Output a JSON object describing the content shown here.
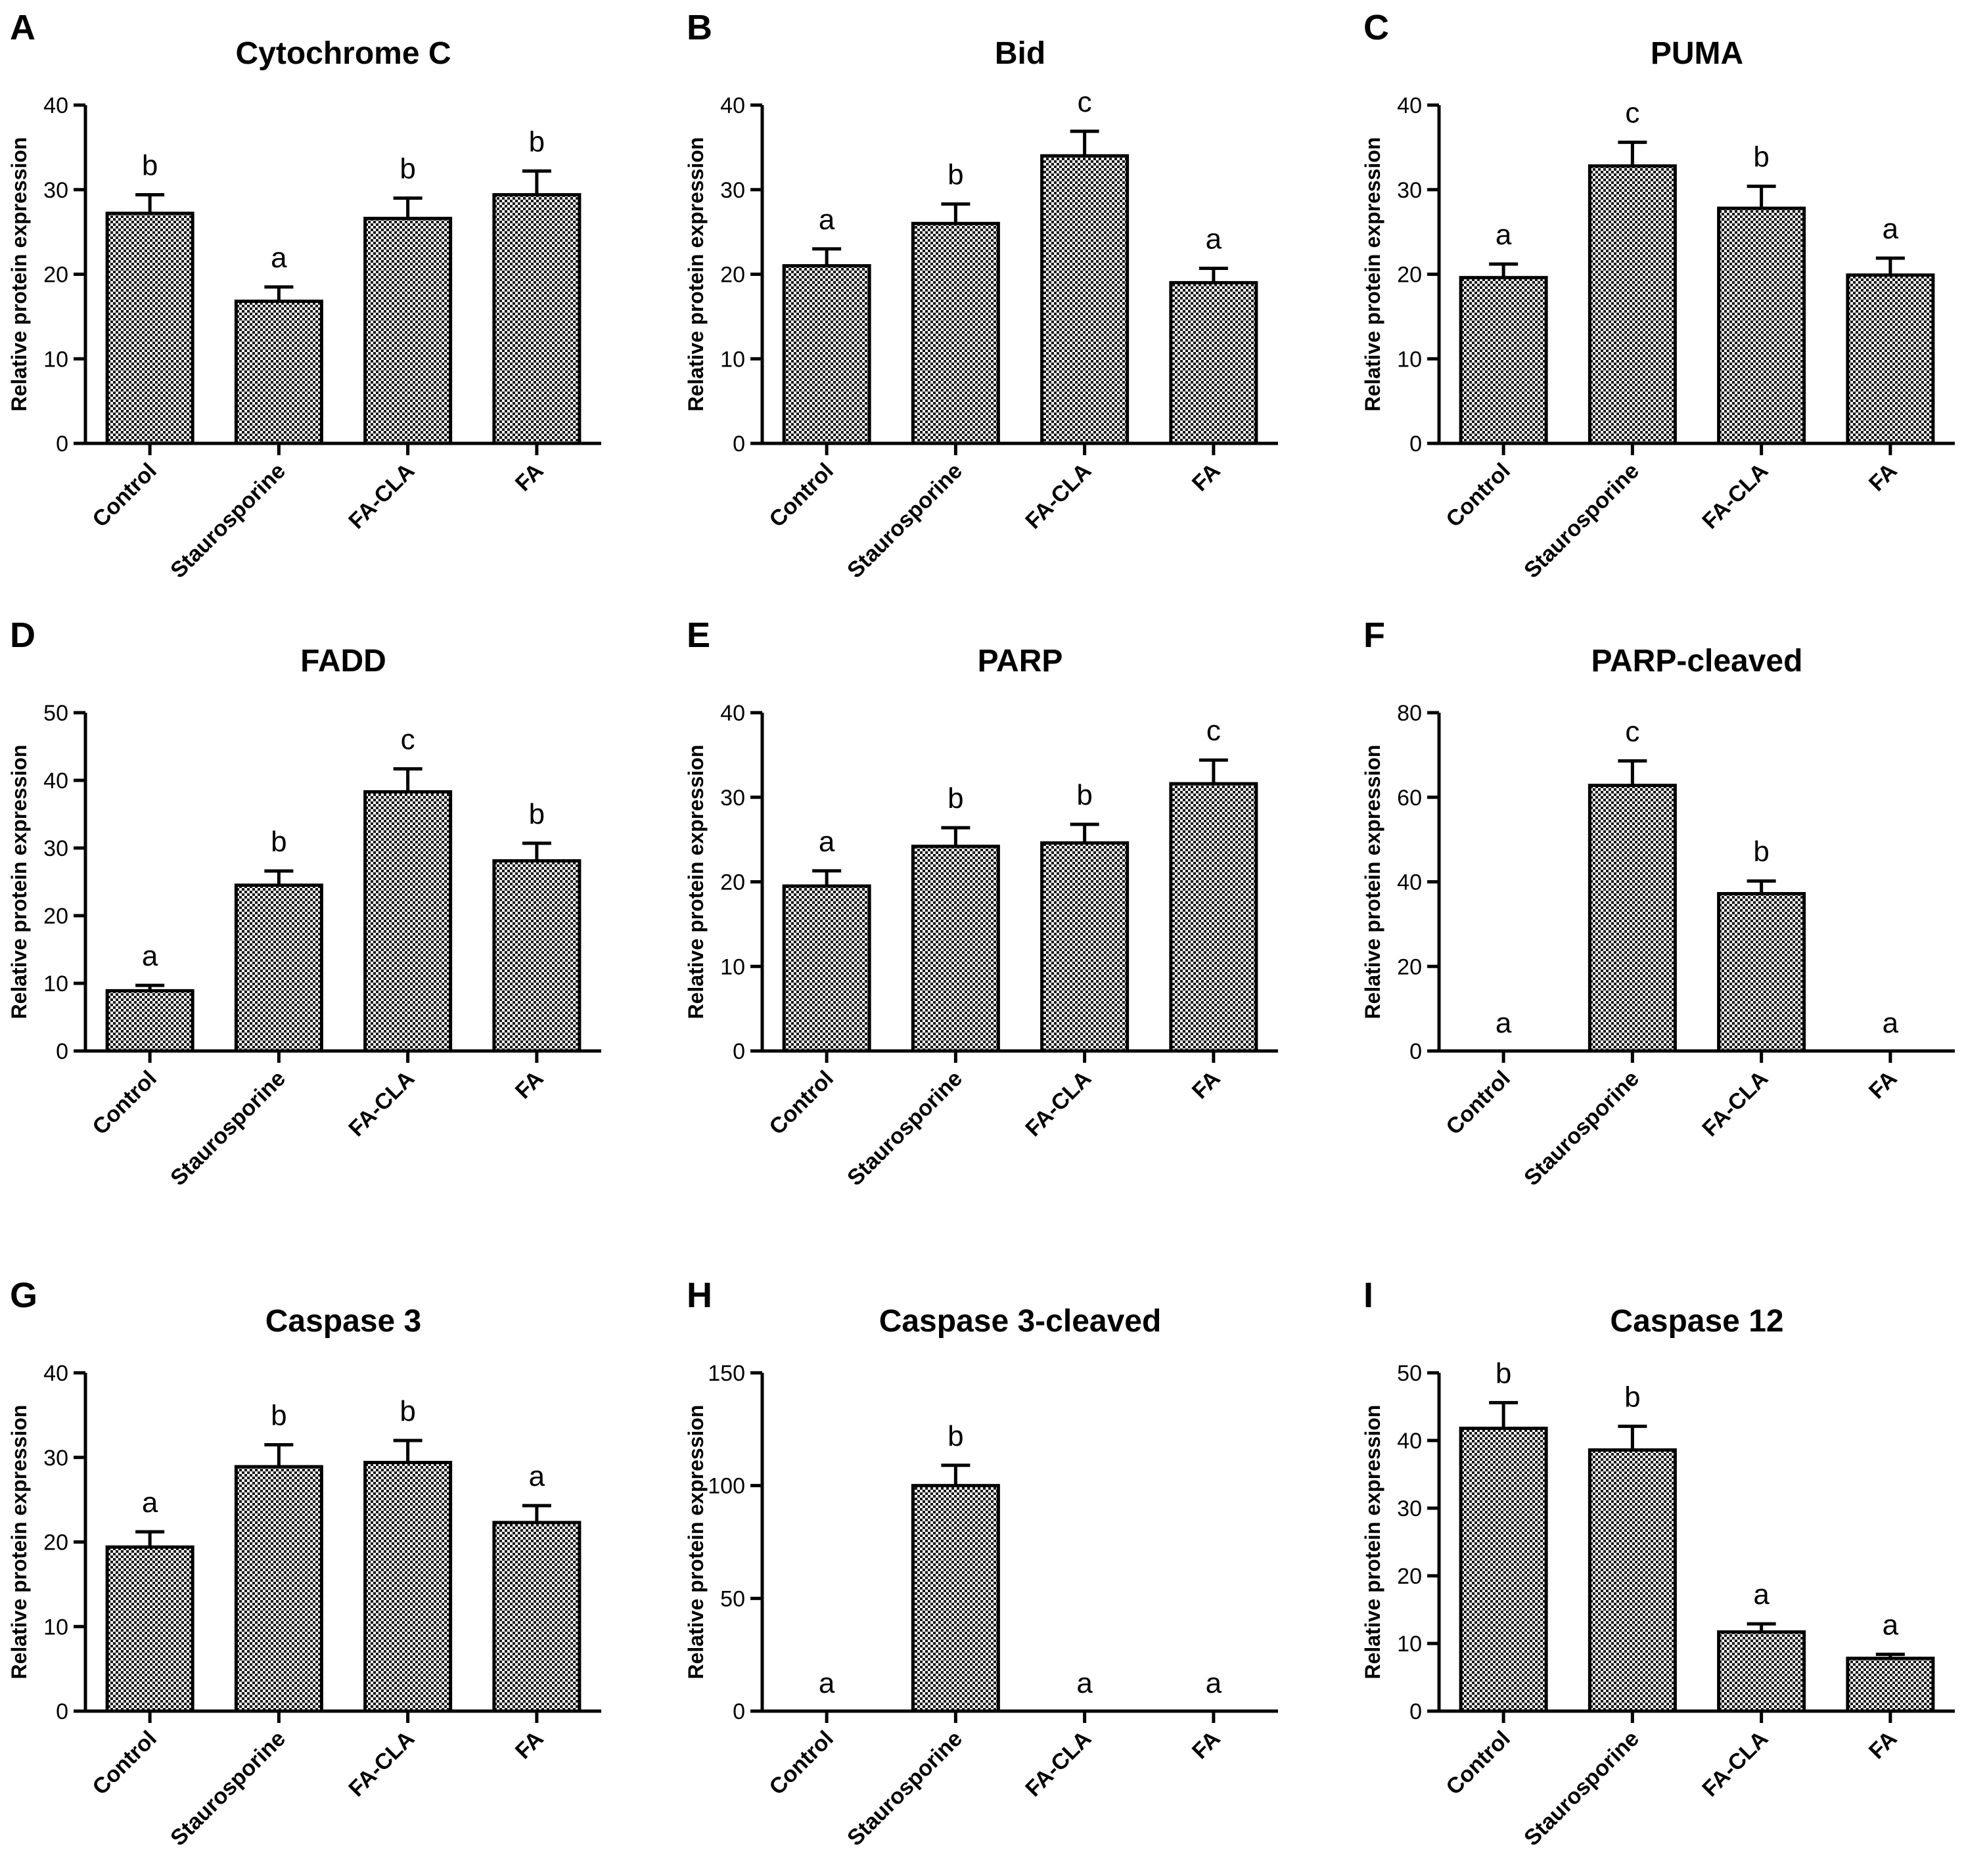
{
  "chart_data": [
    {
      "panel": "A",
      "type": "bar",
      "title": "Cytochrome C",
      "ylabel": "Relative protein expression",
      "ylim": [
        0,
        40
      ],
      "yticks": [
        0,
        10,
        20,
        30,
        40
      ],
      "categories": [
        "Control",
        "Staurosporine",
        "FA-CLA",
        "FA"
      ],
      "values": [
        27.2,
        16.8,
        26.6,
        29.4
      ],
      "errors": [
        2.2,
        1.7,
        2.4,
        2.8
      ],
      "letters": [
        "b",
        "a",
        "b",
        "b"
      ]
    },
    {
      "panel": "B",
      "type": "bar",
      "title": "Bid",
      "ylabel": "Relative protein expression",
      "ylim": [
        0,
        40
      ],
      "yticks": [
        0,
        10,
        20,
        30,
        40
      ],
      "categories": [
        "Control",
        "Staurosporine",
        "FA-CLA",
        "FA"
      ],
      "values": [
        21.0,
        26.0,
        34.0,
        19.0
      ],
      "errors": [
        2.0,
        2.3,
        2.9,
        1.7
      ],
      "letters": [
        "a",
        "b",
        "c",
        "a"
      ]
    },
    {
      "panel": "C",
      "type": "bar",
      "title": "PUMA",
      "ylabel": "Relative protein expression",
      "ylim": [
        0,
        40
      ],
      "yticks": [
        0,
        10,
        20,
        30,
        40
      ],
      "categories": [
        "Control",
        "Staurosporine",
        "FA-CLA",
        "FA"
      ],
      "values": [
        19.6,
        32.8,
        27.8,
        19.9
      ],
      "errors": [
        1.6,
        2.8,
        2.6,
        2.0
      ],
      "letters": [
        "a",
        "c",
        "b",
        "a"
      ]
    },
    {
      "panel": "D",
      "type": "bar",
      "title": "FADD",
      "ylabel": "Relative protein expression",
      "ylim": [
        0,
        50
      ],
      "yticks": [
        0,
        10,
        20,
        30,
        40,
        50
      ],
      "categories": [
        "Control",
        "Staurosporine",
        "FA-CLA",
        "FA"
      ],
      "values": [
        8.9,
        24.5,
        38.3,
        28.1
      ],
      "errors": [
        0.8,
        2.1,
        3.4,
        2.6
      ],
      "letters": [
        "a",
        "b",
        "c",
        "b"
      ]
    },
    {
      "panel": "E",
      "type": "bar",
      "title": "PARP",
      "ylabel": "Relative protein expression",
      "ylim": [
        0,
        40
      ],
      "yticks": [
        0,
        10,
        20,
        30,
        40
      ],
      "categories": [
        "Control",
        "Staurosporine",
        "FA-CLA",
        "FA"
      ],
      "values": [
        19.5,
        24.2,
        24.6,
        31.6
      ],
      "errors": [
        1.8,
        2.2,
        2.2,
        2.8
      ],
      "letters": [
        "a",
        "b",
        "b",
        "c"
      ]
    },
    {
      "panel": "F",
      "type": "bar",
      "title": "PARP-cleaved",
      "ylabel": "Relative protein expression",
      "ylim": [
        0,
        80
      ],
      "yticks": [
        0,
        20,
        40,
        60,
        80
      ],
      "categories": [
        "Control",
        "Staurosporine",
        "FA-CLA",
        "FA"
      ],
      "values": [
        0,
        62.8,
        37.2,
        0
      ],
      "errors": [
        0,
        5.8,
        3.0,
        0
      ],
      "letters": [
        "a",
        "c",
        "b",
        "a"
      ]
    },
    {
      "panel": "G",
      "type": "bar",
      "title": "Caspase 3",
      "ylabel": "Relative protein expression",
      "ylim": [
        0,
        40
      ],
      "yticks": [
        0,
        10,
        20,
        30,
        40
      ],
      "categories": [
        "Control",
        "Staurosporine",
        "FA-CLA",
        "FA"
      ],
      "values": [
        19.4,
        28.9,
        29.4,
        22.3
      ],
      "errors": [
        1.8,
        2.6,
        2.6,
        2.0
      ],
      "letters": [
        "a",
        "b",
        "b",
        "a"
      ]
    },
    {
      "panel": "H",
      "type": "bar",
      "title": "Caspase 3-cleaved",
      "ylabel": "Relative protein expression",
      "ylim": [
        0,
        150
      ],
      "yticks": [
        0,
        50,
        100,
        150
      ],
      "categories": [
        "Control",
        "Staurosporine",
        "FA-CLA",
        "FA"
      ],
      "values": [
        0,
        100,
        0,
        0
      ],
      "errors": [
        0,
        9.0,
        0,
        0
      ],
      "letters": [
        "a",
        "b",
        "a",
        "a"
      ]
    },
    {
      "panel": "I",
      "type": "bar",
      "title": "Caspase 12",
      "ylabel": "Relative protein expression",
      "ylim": [
        0,
        50
      ],
      "yticks": [
        0,
        10,
        20,
        30,
        40,
        50
      ],
      "categories": [
        "Control",
        "Staurosporine",
        "FA-CLA",
        "FA"
      ],
      "values": [
        41.8,
        38.6,
        11.7,
        7.8
      ],
      "errors": [
        3.8,
        3.5,
        1.2,
        0.6
      ],
      "letters": [
        "b",
        "b",
        "a",
        "a"
      ]
    }
  ]
}
